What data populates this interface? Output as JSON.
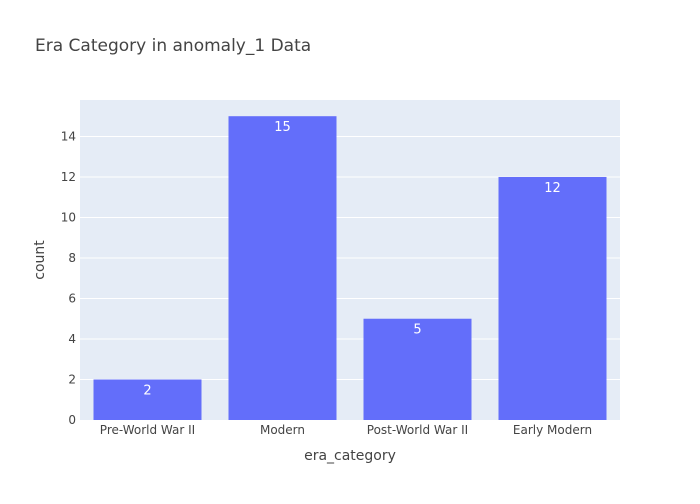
{
  "chart_data": {
    "type": "bar",
    "title": "Era Category in anomaly_1 Data",
    "xlabel": "era_category",
    "ylabel": "count",
    "categories": [
      "Pre-World War II",
      "Modern",
      "Post-World War II",
      "Early Modern"
    ],
    "values": [
      2,
      15,
      5,
      12
    ],
    "data_labels": [
      "2",
      "15",
      "5",
      "12"
    ],
    "ylim": [
      0,
      15.8
    ],
    "yticks": [
      0,
      2,
      4,
      6,
      8,
      10,
      12,
      14
    ],
    "grid": true,
    "legend": "none",
    "colors": {
      "bar": "#636efa",
      "plot_bg": "#e5ecf6",
      "grid": "#ffffff",
      "text": "#444444",
      "title": "#444444",
      "data_label": "#ffffff"
    }
  }
}
